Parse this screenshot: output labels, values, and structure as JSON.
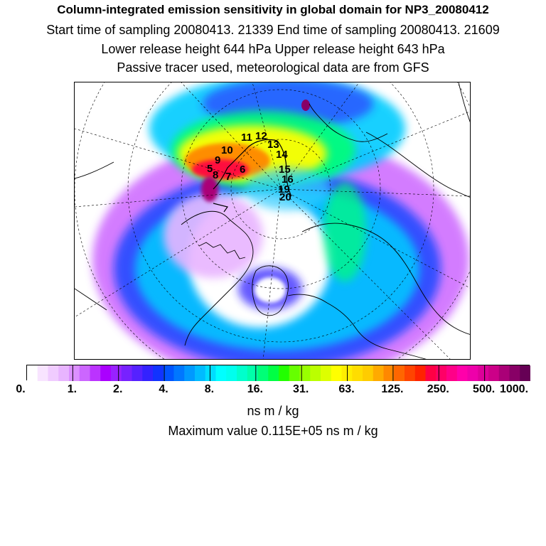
{
  "titles": {
    "line1": "Column-integrated emission sensitivity in global domain for NP3_20080412",
    "line2": "Start time of sampling 20080413. 21339     End time of sampling 20080413. 21609",
    "line3": "Lower release height  644 hPa        Upper release height  643 hPa",
    "line4": "Passive tracer used, meteorological data are from GFS"
  },
  "map": {
    "projection": "north-polar-stereographic",
    "track_labels": [
      "11",
      "12",
      "13",
      "10",
      "14",
      "9",
      "6",
      "15",
      "5",
      "8",
      "7",
      "16",
      "19",
      "20"
    ],
    "colors": {
      "background": "#ffffff",
      "coast": "#000000"
    }
  },
  "colorbar": {
    "labels": [
      "0.",
      "1.",
      "2.",
      "4.",
      "8.",
      "16.",
      "31.",
      "63.",
      "125.",
      "250.",
      "500.",
      "1000."
    ],
    "colors": [
      "#ffffff",
      "#f8e4ff",
      "#f0ccff",
      "#e8b4ff",
      "#dc90ff",
      "#cc66ff",
      "#bb33ff",
      "#aa00ff",
      "#9922ff",
      "#7722ff",
      "#5522ff",
      "#3322ff",
      "#1133ff",
      "#0055ff",
      "#0077ff",
      "#0099ff",
      "#00bbff",
      "#00ddff",
      "#00ffff",
      "#00ffee",
      "#00ffcc",
      "#00ffaa",
      "#00ff77",
      "#00ff44",
      "#22ff00",
      "#66ff00",
      "#99ff00",
      "#bbff00",
      "#ddff00",
      "#ffff00",
      "#ffee00",
      "#ffdd00",
      "#ffcc00",
      "#ffaa00",
      "#ff8800",
      "#ff6600",
      "#ff4400",
      "#ff2200",
      "#ff0044",
      "#ff0066",
      "#ff0088",
      "#ff00aa",
      "#ee00aa",
      "#dd0099",
      "#cc0088",
      "#aa0077",
      "#880066",
      "#660055"
    ]
  },
  "units": "ns m / kg",
  "max_value": "Maximum value  0.115E+05 ns m / kg"
}
